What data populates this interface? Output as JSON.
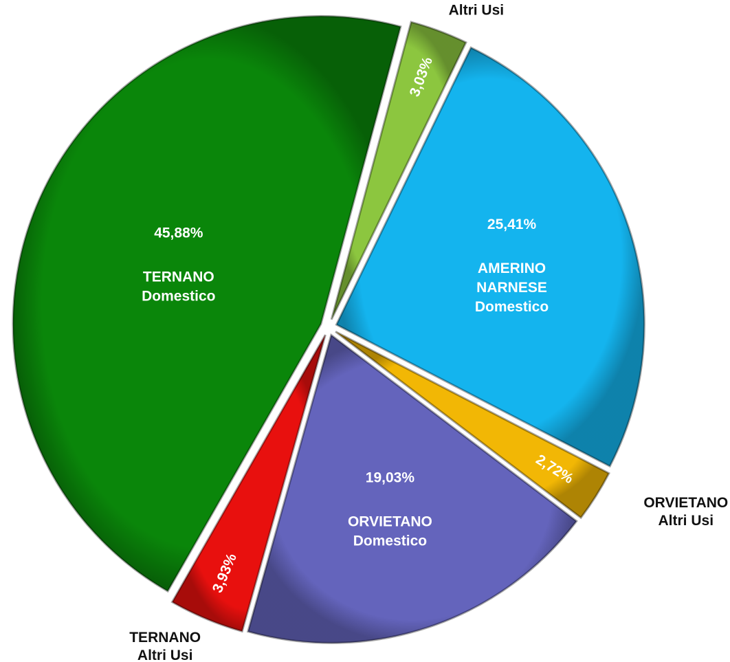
{
  "chart_data": {
    "type": "pie",
    "categories": [
      [
        "AMERINO NARNESE",
        "Altri Usi"
      ],
      [
        "AMERINO",
        "NARNESE",
        "Domestico"
      ],
      [
        "ORVIETANO",
        "Altri Usi"
      ],
      [
        "ORVIETANO",
        "Domestico"
      ],
      [
        "TERNANO",
        "Altri Usi"
      ],
      [
        "TERNANO",
        "Domestico"
      ]
    ],
    "values": [
      3.03,
      25.41,
      2.72,
      19.03,
      3.93,
      45.88
    ],
    "value_labels": [
      "3,03%",
      "25,41%",
      "2,72%",
      "19,03%",
      "3,93%",
      "45,88%"
    ],
    "colors": [
      "#8cc63f",
      "#14b4ee",
      "#f2b705",
      "#6464bc",
      "#e8100e",
      "#0a860a"
    ],
    "start_angle": 15
  }
}
